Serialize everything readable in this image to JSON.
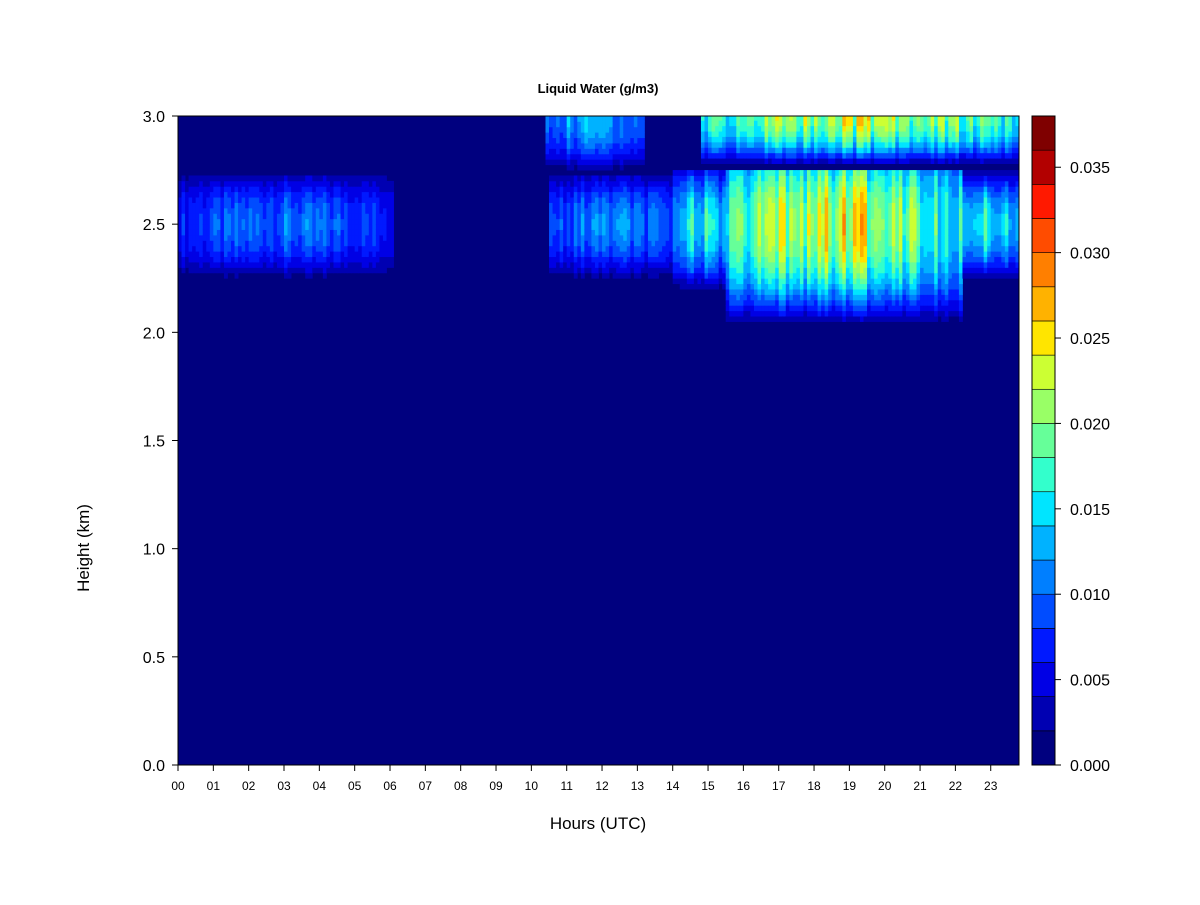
{
  "chart_data": {
    "type": "heatmap",
    "title": "Liquid Water (g/m3)",
    "xlabel": "Hours (UTC)",
    "ylabel": "Height (km)",
    "xlim": [
      0,
      23.8
    ],
    "ylim": [
      0,
      3.0
    ],
    "x_ticks": [
      "00",
      "01",
      "02",
      "03",
      "04",
      "05",
      "06",
      "07",
      "08",
      "09",
      "10",
      "11",
      "12",
      "13",
      "14",
      "15",
      "16",
      "17",
      "18",
      "19",
      "20",
      "21",
      "22",
      "23"
    ],
    "y_ticks": [
      "0.0",
      "0.5",
      "1.0",
      "1.5",
      "2.0",
      "2.5",
      "3.0"
    ],
    "colorbar": {
      "min": 0.0,
      "max": 0.038,
      "ticks": [
        "0.000",
        "0.005",
        "0.010",
        "0.015",
        "0.020",
        "0.025",
        "0.030",
        "0.035"
      ],
      "tick_values": [
        0.0,
        0.005,
        0.01,
        0.015,
        0.02,
        0.025,
        0.03,
        0.035
      ],
      "colors": [
        "#00007F",
        "#0000B2",
        "#0000E5",
        "#0019FF",
        "#004CFF",
        "#007FFF",
        "#00B2FF",
        "#00E5FF",
        "#33FFCC",
        "#66FF99",
        "#99FF66",
        "#CCFF33",
        "#FFE500",
        "#FFB200",
        "#FF7F00",
        "#FF4C00",
        "#FF1900",
        "#B20000",
        "#7F0000"
      ]
    },
    "regions": [
      {
        "x": [
          0,
          6.1
        ],
        "y": [
          2.25,
          2.72
        ],
        "peak_height": 2.5,
        "peak_value": 0.01
      },
      {
        "x": [
          10.5,
          14.0
        ],
        "y": [
          2.25,
          2.72
        ],
        "peak_height": 2.5,
        "peak_value": 0.011
      },
      {
        "x": [
          10.4,
          13.2
        ],
        "y": [
          2.75,
          3.0
        ],
        "peak_height": 3.0,
        "peak_value": 0.013
      },
      {
        "x": [
          14.0,
          15.5
        ],
        "y": [
          2.2,
          2.75
        ],
        "peak_height": 2.5,
        "peak_value": 0.016
      },
      {
        "x": [
          15.5,
          22.2
        ],
        "y": [
          2.05,
          2.75
        ],
        "peak_height": 2.5,
        "peak_value": 0.023
      },
      {
        "x": [
          22.2,
          23.8
        ],
        "y": [
          2.25,
          2.75
        ],
        "peak_height": 2.5,
        "peak_value": 0.016
      },
      {
        "x": [
          14.8,
          23.8
        ],
        "y": [
          2.78,
          3.0
        ],
        "peak_height": 3.0,
        "peak_value": 0.022
      }
    ]
  }
}
